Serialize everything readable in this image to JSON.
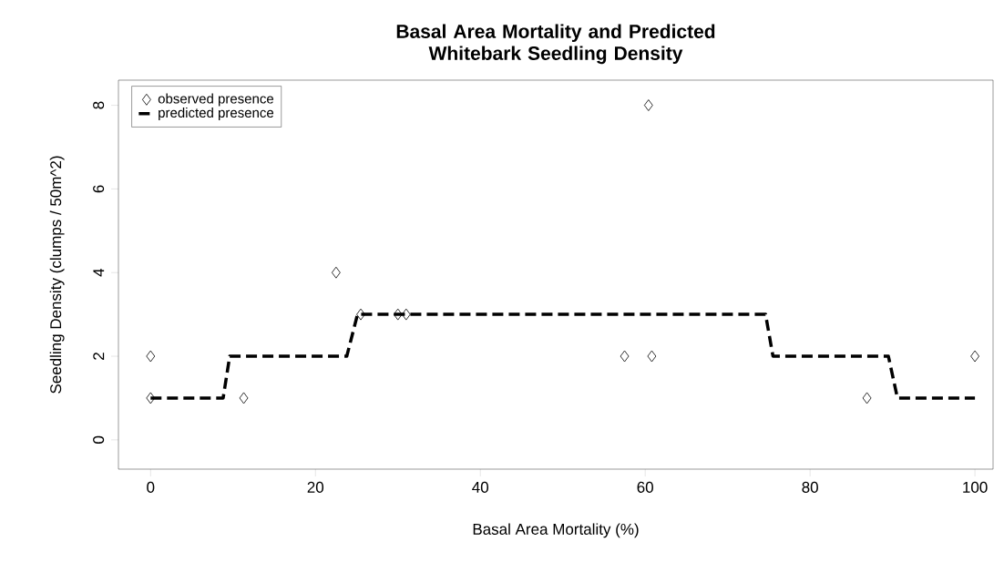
{
  "chart_data": {
    "type": "line",
    "title": "Basal Area Mortality and Predicted Whitebark Seedling Density",
    "xlabel": "Basal Area Mortality (%)",
    "ylabel": "Seedling Density (clumps / 50m^2)",
    "xlim": [
      -3.9,
      102.2
    ],
    "ylim": [
      -0.7,
      8.6
    ],
    "xticks": [
      0,
      20,
      40,
      60,
      80,
      100
    ],
    "yticks": [
      0,
      2,
      4,
      6,
      8
    ],
    "grid": false,
    "legend": "top left",
    "series": [
      {
        "name": "observed presence",
        "type": "scatter",
        "marker": "diamond",
        "color": "#000000",
        "x": [
          0,
          0,
          11.3,
          22.5,
          25.5,
          30,
          31,
          57.5,
          60.4,
          60.8,
          86.9,
          100
        ],
        "values": [
          2,
          1,
          1,
          4,
          3,
          3,
          3,
          2,
          8,
          2,
          1,
          2
        ]
      },
      {
        "name": "predicted presence",
        "type": "line",
        "line_style": "dashed",
        "color": "#000000",
        "x": [
          0,
          8.8,
          9.6,
          23.8,
          25.1,
          74.6,
          75.5,
          89.5,
          90.6,
          100
        ],
        "values": [
          1,
          1,
          2,
          2,
          3,
          3,
          2,
          2,
          1,
          1
        ]
      }
    ]
  }
}
